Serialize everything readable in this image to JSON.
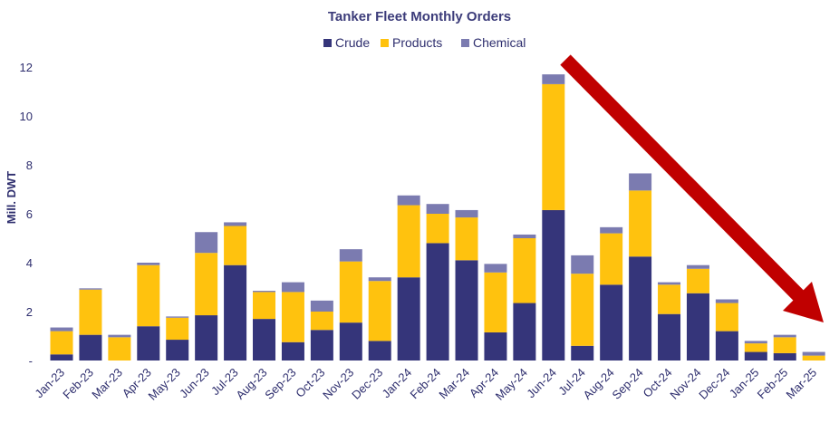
{
  "chart_data": {
    "type": "bar",
    "stacked": true,
    "title": "Tanker Fleet Monthly Orders",
    "ylabel": "Mill. DWT",
    "xlabel": "",
    "ylim": [
      0,
      12
    ],
    "yticks": [
      "-",
      "2",
      "4",
      "6",
      "8",
      "10",
      "12"
    ],
    "grid": false,
    "legend_position": "top-center",
    "categories": [
      "Jan-23",
      "Feb-23",
      "Mar-23",
      "Apr-23",
      "May-23",
      "Jun-23",
      "Jul-23",
      "Aug-23",
      "Sep-23",
      "Oct-23",
      "Nov-23",
      "Dec-23",
      "Jan-24",
      "Feb-24",
      "Mar-24",
      "Apr-24",
      "May-24",
      "Jun-24",
      "Jul-24",
      "Aug-24",
      "Sep-24",
      "Oct-24",
      "Nov-24",
      "Dec-24",
      "Jan-25",
      "Feb-25",
      "Mar-25"
    ],
    "series": [
      {
        "name": "Crude",
        "color": "#35357a",
        "values": [
          0.25,
          1.05,
          0.0,
          1.4,
          0.85,
          1.85,
          3.9,
          1.7,
          0.75,
          1.25,
          1.55,
          0.8,
          3.4,
          4.8,
          4.1,
          1.15,
          2.35,
          6.15,
          0.6,
          3.1,
          4.25,
          1.9,
          2.75,
          1.2,
          0.35,
          0.3,
          0.0
        ]
      },
      {
        "name": "Products",
        "color": "#ffc20e",
        "values": [
          0.95,
          1.85,
          0.95,
          2.5,
          0.9,
          2.55,
          1.6,
          1.1,
          2.05,
          0.75,
          2.5,
          2.45,
          2.95,
          1.2,
          1.75,
          2.45,
          2.65,
          5.15,
          2.95,
          2.1,
          2.7,
          1.2,
          1.0,
          1.15,
          0.35,
          0.65,
          0.2
        ]
      },
      {
        "name": "Chemical",
        "color": "#7b7bb0",
        "values": [
          0.15,
          0.05,
          0.1,
          0.1,
          0.05,
          0.85,
          0.15,
          0.05,
          0.4,
          0.45,
          0.5,
          0.15,
          0.4,
          0.4,
          0.3,
          0.35,
          0.15,
          0.4,
          0.75,
          0.25,
          0.7,
          0.1,
          0.15,
          0.15,
          0.1,
          0.1,
          0.15
        ]
      }
    ],
    "annotation": {
      "type": "arrow",
      "color": "#c00000",
      "description_visible": false
    }
  }
}
